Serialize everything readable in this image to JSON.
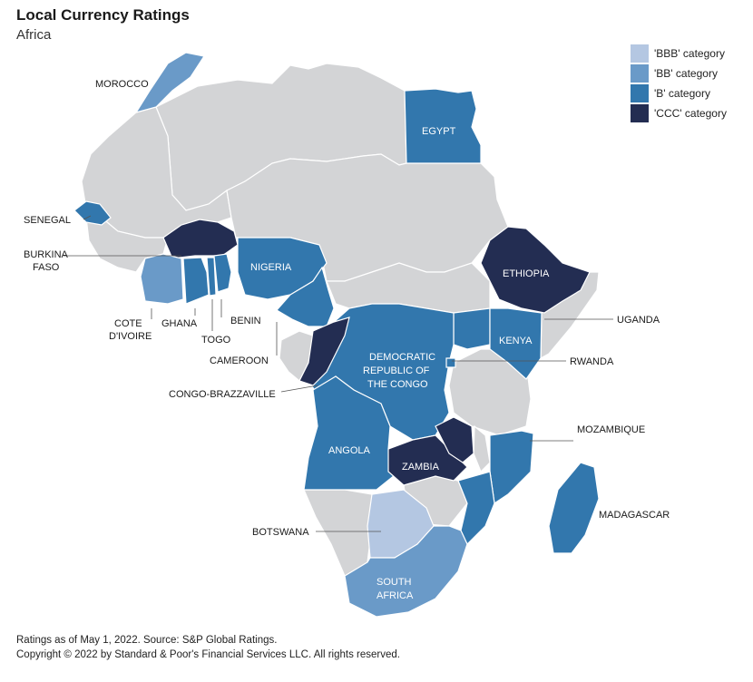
{
  "title": "Local Currency Ratings",
  "subtitle": "Africa",
  "legend": [
    {
      "label": "'BBB' category",
      "color": "#b4c7e2"
    },
    {
      "label": "'BB' category",
      "color": "#6a9ac8"
    },
    {
      "label": "'B' category",
      "color": "#3277ad"
    },
    {
      "label": "'CCC' category",
      "color": "#232d52"
    }
  ],
  "colors": {
    "unrated": "#d3d4d6",
    "border": "#ffffff",
    "leader": "#555555"
  },
  "countries": {
    "morocco": {
      "label": "MOROCCO",
      "category": "BB"
    },
    "egypt": {
      "label": "EGYPT",
      "category": "B"
    },
    "senegal": {
      "label": "SENEGAL",
      "category": "B"
    },
    "burkina_faso": {
      "label_line1": "BURKINA",
      "label_line2": "FASO",
      "category": "CCC"
    },
    "nigeria": {
      "label": "NIGERIA",
      "category": "B"
    },
    "ethiopia": {
      "label": "ETHIOPIA",
      "category": "CCC"
    },
    "cote_divoire": {
      "label_line1": "COTE",
      "label_line2": "D'IVOIRE",
      "category": "BB"
    },
    "ghana": {
      "label": "GHANA",
      "category": "B"
    },
    "togo": {
      "label": "TOGO",
      "category": "B"
    },
    "benin": {
      "label": "BENIN",
      "category": "B"
    },
    "uganda": {
      "label": "UGANDA",
      "category": "B"
    },
    "kenya": {
      "label": "KENYA",
      "category": "B"
    },
    "cameroon": {
      "label": "CAMEROON",
      "category": "B"
    },
    "drc": {
      "label_line1": "DEMOCRATIC",
      "label_line2": "REPUBLIC OF",
      "label_line3": "THE CONGO",
      "category": "B"
    },
    "rwanda": {
      "label": "RWANDA",
      "category": "B"
    },
    "congo_brazzaville": {
      "label": "CONGO-BRAZZAVILLE",
      "category": "CCC"
    },
    "mozambique": {
      "label": "MOZAMBIQUE",
      "category": "B"
    },
    "angola": {
      "label": "ANGOLA",
      "category": "B"
    },
    "zambia": {
      "label": "ZAMBIA",
      "category": "CCC"
    },
    "madagascar": {
      "label": "MADAGASCAR",
      "category": "B"
    },
    "botswana": {
      "label": "BOTSWANA",
      "category": "BBB"
    },
    "south_africa": {
      "label_line1": "SOUTH",
      "label_line2": "AFRICA",
      "category": "BB"
    }
  },
  "footer": {
    "source": "Ratings as of May 1, 2022. Source: S&P Global Ratings.",
    "copyright": "Copyright © 2022 by Standard & Poor's Financial Services LLC. All rights reserved."
  }
}
